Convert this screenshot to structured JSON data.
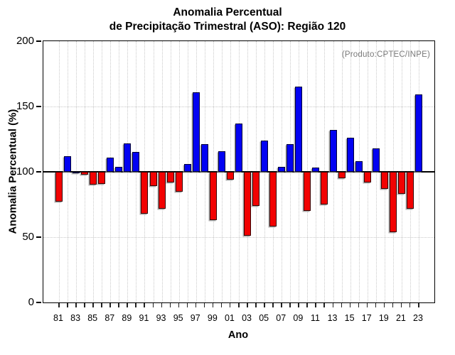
{
  "title": {
    "line1": "Anomalia Percentual",
    "line2": "de Precipitação Trimestral (ASO): Região 120"
  },
  "annotation": {
    "text": "(Produto:CPTEC/INPE)",
    "color": "#7a7a7a"
  },
  "chart_data": {
    "type": "bar",
    "title": "Anomalia Percentual de Precipitação Trimestral (ASO): Região 120",
    "xlabel": "Ano",
    "ylabel": "Anomalia Percentual (%)",
    "ylim": [
      0,
      200
    ],
    "yticks": [
      "0",
      "50",
      "100",
      "150",
      "200"
    ],
    "baseline": 100,
    "hgrid_values": [
      50,
      150
    ],
    "grid": "dotted vertical line per year, dotted horizontal at 50 and 150",
    "legend_position": "none",
    "x_tick_label_every": 2,
    "colors": {
      "above_baseline": "#0202f2",
      "below_baseline": "#f20202",
      "axis": "#000000",
      "gridline": "#c9c9c9"
    },
    "years": [
      "81",
      "82",
      "83",
      "84",
      "85",
      "86",
      "87",
      "88",
      "89",
      "90",
      "91",
      "92",
      "93",
      "94",
      "95",
      "96",
      "97",
      "98",
      "99",
      "00",
      "01",
      "02",
      "03",
      "04",
      "05",
      "06",
      "07",
      "08",
      "09",
      "10",
      "11",
      "12",
      "13",
      "14",
      "15",
      "16",
      "17",
      "18",
      "19",
      "20",
      "21",
      "22",
      "23"
    ],
    "values": [
      77,
      112,
      100,
      98,
      90,
      91,
      111,
      104,
      122,
      115,
      68,
      89,
      72,
      92,
      85,
      106,
      161,
      121,
      63,
      116,
      94,
      137,
      51,
      74,
      124,
      58,
      104,
      121,
      165,
      70,
      103,
      75,
      132,
      95,
      126,
      108,
      92,
      118,
      87,
      54,
      83,
      72,
      159
    ]
  }
}
